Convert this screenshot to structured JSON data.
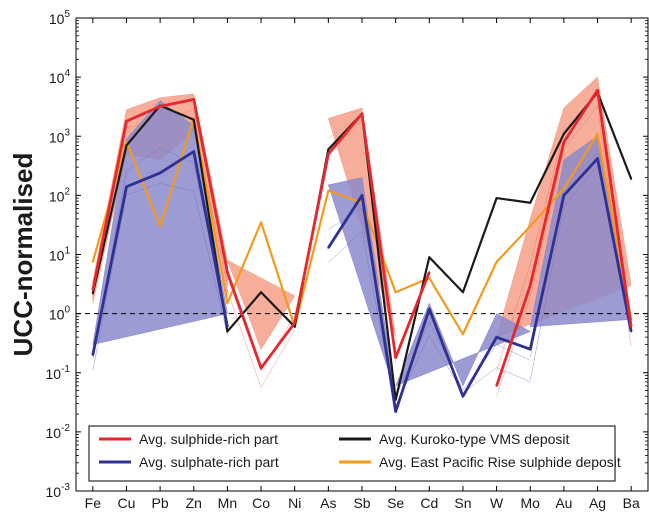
{
  "chart_data": {
    "type": "line",
    "title": "",
    "ylabel": "UCC-normalised",
    "xlabel": "",
    "yscale": "log",
    "ylim": [
      0.001,
      100000
    ],
    "yticks": [
      {
        "value": 0.001,
        "base": "10",
        "exp": "-3"
      },
      {
        "value": 0.01,
        "base": "10",
        "exp": "-2"
      },
      {
        "value": 0.1,
        "base": "10",
        "exp": "-1"
      },
      {
        "value": 1,
        "base": "10",
        "exp": "0"
      },
      {
        "value": 10,
        "base": "10",
        "exp": "1"
      },
      {
        "value": 100,
        "base": "10",
        "exp": "2"
      },
      {
        "value": 1000,
        "base": "10",
        "exp": "3"
      },
      {
        "value": 10000,
        "base": "10",
        "exp": "4"
      },
      {
        "value": 100000,
        "base": "10",
        "exp": "5"
      }
    ],
    "categories": [
      "Fe",
      "Cu",
      "Pb",
      "Zn",
      "Mn",
      "Co",
      "Ni",
      "As",
      "Sb",
      "Se",
      "Cd",
      "Sn",
      "W",
      "Mo",
      "Au",
      "Ag",
      "Ba"
    ],
    "reference_line": {
      "value": 1,
      "style": "dashed"
    },
    "legend_position": "bottom",
    "series": [
      {
        "name": "Avg. sulphide-rich part",
        "color": "#e8262e",
        "values": [
          2.5,
          1800,
          3200,
          4200,
          5,
          0.12,
          0.7,
          500,
          2400,
          0.18,
          5,
          null,
          0.06,
          3,
          800,
          6000,
          0.6
        ]
      },
      {
        "name": "Avg. sulphate-rich part",
        "color": "#2e3192",
        "values": [
          0.2,
          140,
          240,
          550,
          0.6,
          null,
          null,
          13,
          100,
          0.022,
          1.2,
          0.04,
          0.4,
          0.25,
          100,
          420,
          0.5
        ]
      },
      {
        "name": "Avg. Kuroko-type VMS deposit",
        "color": "#1a1a1a",
        "values": [
          2.2,
          700,
          3300,
          1900,
          0.5,
          2.3,
          0.6,
          600,
          2400,
          0.035,
          9,
          2.3,
          90,
          75,
          1100,
          5500,
          190
        ]
      },
      {
        "name": "Avg. East Pacific Rise sulphide deposit",
        "color": "#f39a1e",
        "values": [
          7.5,
          800,
          30,
          2000,
          1.5,
          35,
          0.6,
          120,
          75,
          2.3,
          4,
          0.45,
          7.5,
          30,
          130,
          1100,
          0.8
        ]
      }
    ],
    "bands": [
      {
        "name": "sulphide-rich range",
        "color": "#f4a08a",
        "segments": [
          {
            "from": 0,
            "to": 4,
            "upper": [
              3.5,
              2800,
              4500,
              5200,
              8
            ],
            "lower": [
              1.5,
              500,
              400,
              1200,
              2
            ]
          },
          {
            "from": 4,
            "to": 7,
            "upper": [
              8,
              0.25,
              2
            ],
            "lower": [
              1.5,
              0.03,
              0.3
            ]
          },
          {
            "from": 7,
            "to": 10,
            "upper": [
              2000,
              3000,
              0.4
            ],
            "lower": [
              300,
              1500,
              0.1
            ]
          },
          {
            "from": 12,
            "to": 17,
            "upper": [
              0.4,
              40,
              3000,
              10000,
              3
            ],
            "lower": [
              0.015,
              0.5,
              300,
              2000,
              0.1
            ]
          }
        ]
      },
      {
        "name": "sulphate-rich range",
        "color": "#8c8acb",
        "segments": [
          {
            "from": 0,
            "to": 5,
            "upper": [
              0.3,
              900,
              4000,
              1500,
              1
            ],
            "lower": [
              0.07,
              40,
              40,
              40,
              0.3
            ]
          },
          {
            "from": 7,
            "to": 10,
            "upper": [
              150,
              200,
              0.045
            ],
            "lower": [
              2,
              10,
              0.02
            ]
          },
          {
            "from": 9,
            "to": 14,
            "upper": [
              0.06,
              1.5,
              0.06,
              1,
              0.5
            ],
            "lower": [
              0.02,
              0.25,
              0.04,
              0.05,
              0.03
            ]
          },
          {
            "from": 13,
            "to": 17,
            "upper": [
              0.6,
              400,
              1000,
              0.8
            ],
            "lower": [
              0.03,
              30,
              200,
              0.4
            ]
          }
        ]
      }
    ]
  }
}
